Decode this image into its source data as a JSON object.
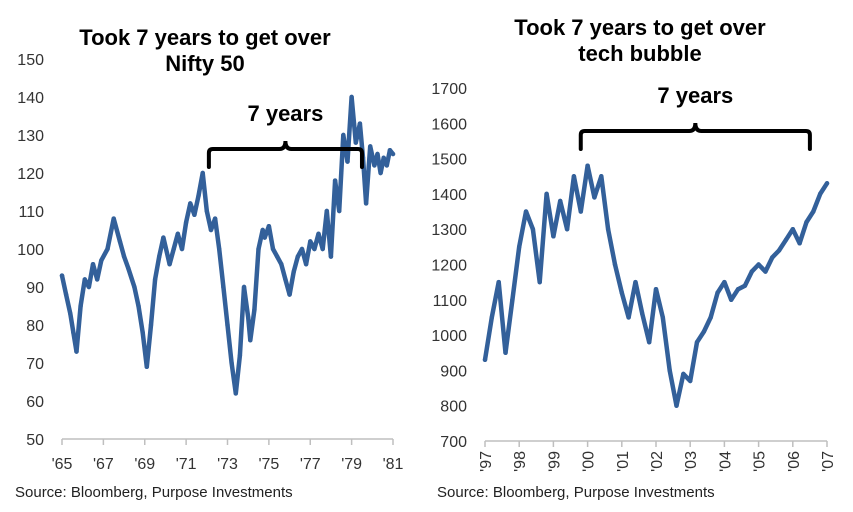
{
  "colors": {
    "series": "#33609a",
    "axis": "#bfbfbf",
    "text": "#333333",
    "bracket": "#000000"
  },
  "chart_data": [
    {
      "type": "line",
      "title": "Took 7 years to get over Nifty 50",
      "title_lines": [
        "Took 7 years to get over",
        "Nifty 50"
      ],
      "source": "Source: Bloomberg, Purpose Investments",
      "xlabel": "",
      "ylabel": "",
      "ylim": [
        50,
        150
      ],
      "xlim": [
        1965,
        1981
      ],
      "yticks": [
        50,
        60,
        70,
        80,
        90,
        100,
        110,
        120,
        130,
        140,
        150
      ],
      "xtick_labels": [
        "'65",
        "'67",
        "'69",
        "'71",
        "'73",
        "'75",
        "'77",
        "'79",
        "'81"
      ],
      "xtick_values": [
        1965,
        1967,
        1969,
        1971,
        1973,
        1975,
        1977,
        1979,
        1981
      ],
      "grid": false,
      "annotation": {
        "label": "7 years",
        "from": 1972.1,
        "to": 1979.5
      },
      "series": [
        {
          "x": [
            1965.0,
            1965.2,
            1965.4,
            1965.55,
            1965.7,
            1965.9,
            1966.1,
            1966.3,
            1966.5,
            1966.7,
            1966.9,
            1967.2,
            1967.5,
            1967.8,
            1968.0,
            1968.2,
            1968.5,
            1968.7,
            1968.9,
            1969.1,
            1969.3,
            1969.5,
            1969.7,
            1969.9,
            1970.2,
            1970.4,
            1970.6,
            1970.8,
            1971.0,
            1971.2,
            1971.4,
            1971.6,
            1971.8,
            1972.0,
            1972.2,
            1972.4,
            1972.6,
            1972.8,
            1973.0,
            1973.2,
            1973.4,
            1973.6,
            1973.8,
            1974.0,
            1974.1,
            1974.3,
            1974.5,
            1974.7,
            1974.8,
            1975.0,
            1975.2,
            1975.4,
            1975.6,
            1975.8,
            1976.0,
            1976.2,
            1976.4,
            1976.6,
            1976.8,
            1977.0,
            1977.2,
            1977.4,
            1977.6,
            1977.8,
            1978.0,
            1978.2,
            1978.4,
            1978.6,
            1978.8,
            1979.0,
            1979.2,
            1979.4,
            1979.55,
            1979.7,
            1979.9,
            1980.1,
            1980.25,
            1980.4,
            1980.55,
            1980.7,
            1980.85,
            1981.0
          ],
          "y": [
            93,
            88,
            83,
            78,
            73,
            85,
            92,
            90,
            96,
            92,
            97,
            100,
            108,
            102,
            98,
            95,
            90,
            85,
            78,
            69,
            80,
            92,
            98,
            103,
            96,
            100,
            104,
            100,
            107,
            112,
            109,
            114,
            120,
            110,
            105,
            108,
            100,
            90,
            80,
            70,
            62,
            72,
            90,
            82,
            76,
            84,
            100,
            105,
            103,
            106,
            100,
            98,
            96,
            92,
            88,
            94,
            98,
            100,
            96,
            102,
            100,
            104,
            100,
            110,
            98,
            118,
            110,
            130,
            123,
            140,
            128,
            133,
            124,
            112,
            127,
            122,
            125,
            120,
            124,
            122,
            126,
            125
          ]
        }
      ]
    },
    {
      "type": "line",
      "title": "Took 7 years to get over tech bubble",
      "title_lines": [
        "Took 7 years to get over",
        "tech bubble"
      ],
      "source": "Source: Bloomberg, Purpose Investments",
      "xlabel": "",
      "ylabel": "",
      "ylim": [
        700,
        1700
      ],
      "xlim": [
        1997,
        2007
      ],
      "yticks": [
        700,
        800,
        900,
        1000,
        1100,
        1200,
        1300,
        1400,
        1500,
        1600,
        1700
      ],
      "xtick_labels": [
        "'97",
        "'98",
        "'99",
        "'00",
        "'01",
        "'02",
        "'03",
        "'04",
        "'05",
        "'06",
        "'07"
      ],
      "xtick_values": [
        1997,
        1998,
        1999,
        2000,
        2001,
        2002,
        2003,
        2004,
        2005,
        2006,
        2007
      ],
      "grid": false,
      "annotation": {
        "label": "7 years",
        "from": 1999.8,
        "to": 2006.5
      },
      "series": [
        {
          "x": [
            1997.0,
            1997.2,
            1997.4,
            1997.6,
            1997.8,
            1998.0,
            1998.2,
            1998.4,
            1998.6,
            1998.8,
            1999.0,
            1999.2,
            1999.4,
            1999.6,
            1999.8,
            2000.0,
            2000.2,
            2000.4,
            2000.6,
            2000.8,
            2001.0,
            2001.2,
            2001.4,
            2001.6,
            2001.8,
            2002.0,
            2002.2,
            2002.4,
            2002.6,
            2002.8,
            2003.0,
            2003.2,
            2003.4,
            2003.6,
            2003.8,
            2004.0,
            2004.2,
            2004.4,
            2004.6,
            2004.8,
            2005.0,
            2005.2,
            2005.4,
            2005.6,
            2005.8,
            2006.0,
            2006.2,
            2006.4,
            2006.6,
            2006.8,
            2007.0
          ],
          "y": [
            930,
            1050,
            1150,
            950,
            1100,
            1250,
            1350,
            1300,
            1150,
            1400,
            1280,
            1380,
            1300,
            1450,
            1350,
            1480,
            1390,
            1450,
            1300,
            1200,
            1120,
            1050,
            1150,
            1060,
            980,
            1130,
            1050,
            900,
            800,
            890,
            870,
            980,
            1010,
            1050,
            1120,
            1150,
            1100,
            1130,
            1140,
            1180,
            1200,
            1180,
            1220,
            1240,
            1270,
            1300,
            1260,
            1320,
            1350,
            1400,
            1430
          ]
        }
      ]
    }
  ]
}
